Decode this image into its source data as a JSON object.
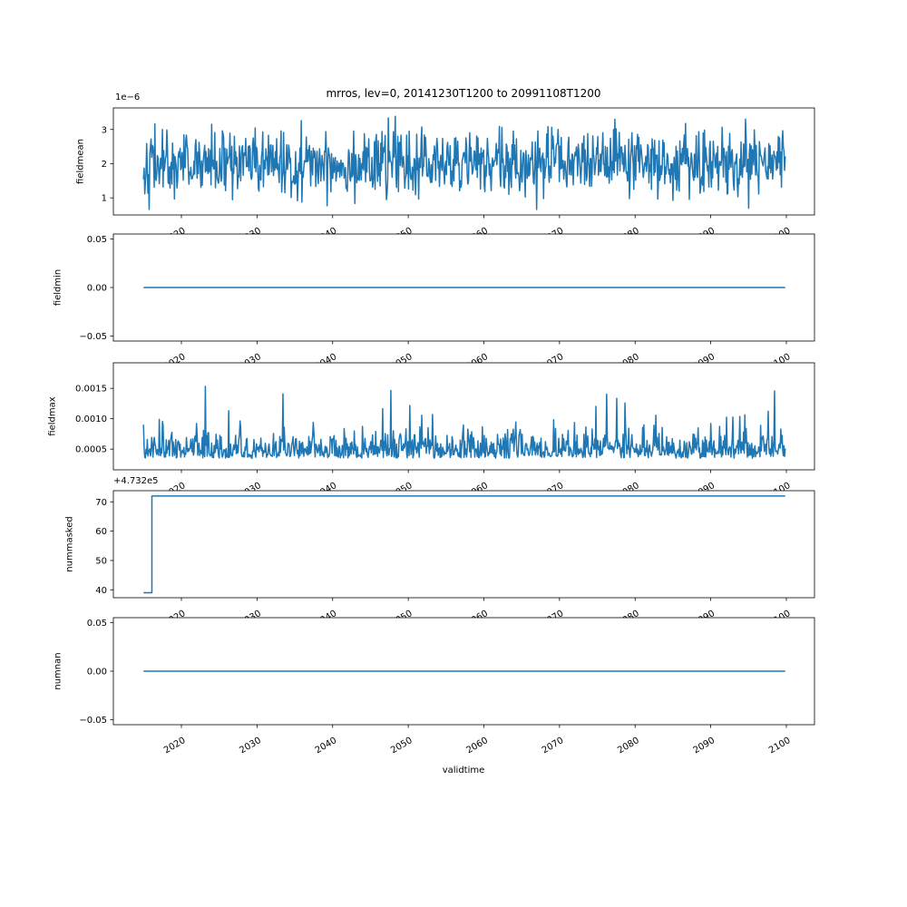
{
  "figure": {
    "title": "mrros, lev=0, 20141230T1200 to 20991108T1200",
    "xlabel": "validtime",
    "background": "#ffffff",
    "line_color": "#1f77b4",
    "axis_color": "#000000",
    "x_tick_years": [
      2020,
      2030,
      2040,
      2050,
      2060,
      2070,
      2080,
      2090,
      2100
    ],
    "x_tick_labels": [
      "2020",
      "2030",
      "2040",
      "2050",
      "2060",
      "2070",
      "2080",
      "2090",
      "2100"
    ],
    "xlim_years": [
      2011.0,
      2103.7
    ],
    "x_tick_rotation_deg": 30
  },
  "chart_data": [
    {
      "type": "line",
      "name": "fieldmean",
      "ylabel": "fieldmean",
      "scale_label": "1e−6",
      "yticks": [
        {
          "v": 1e-06,
          "label": "1"
        },
        {
          "v": 2e-06,
          "label": "2"
        },
        {
          "v": 3e-06,
          "label": "3"
        }
      ],
      "ylim": [
        5e-07,
        3.63e-06
      ],
      "series": {
        "kind": "random-normal",
        "n": 1018,
        "x_start": 2014.99,
        "x_end": 2099.85,
        "mean": 2e-06,
        "sd": 4.8e-07,
        "clip_min": 6.6e-07,
        "clip_max": 3.52e-06,
        "seed": 42
      }
    },
    {
      "type": "line",
      "name": "fieldmin",
      "ylabel": "fieldmin",
      "yticks": [
        {
          "v": 0.05,
          "label": "0.05"
        },
        {
          "v": 0.0,
          "label": "0.00"
        },
        {
          "v": -0.05,
          "label": "−0.05"
        }
      ],
      "ylim": [
        -0.055,
        0.055
      ],
      "series": {
        "kind": "constant",
        "value": 0.0,
        "x_start": 2014.99,
        "x_end": 2099.85
      }
    },
    {
      "type": "line",
      "name": "fieldmax",
      "ylabel": "fieldmax",
      "yticks": [
        {
          "v": 0.0015,
          "label": "0.0015"
        },
        {
          "v": 0.001,
          "label": "0.0010"
        },
        {
          "v": 0.0005,
          "label": "0.0005"
        }
      ],
      "ylim": [
        0.00016,
        0.00192
      ],
      "series": {
        "kind": "random-spiky",
        "n": 1018,
        "x_start": 2014.99,
        "x_end": 2099.85,
        "base": 0.00035,
        "noise_scale": 0.0002,
        "spike_prob": 0.06,
        "spike_scale": 0.00125,
        "clip_min": 0.00027,
        "clip_max": 0.00184,
        "seed": 7
      }
    },
    {
      "type": "line",
      "name": "nummasked",
      "ylabel": "nummasked",
      "offset_label": "+4.732e5",
      "yticks": [
        {
          "v": 473270,
          "label": "70"
        },
        {
          "v": 473260,
          "label": "60"
        },
        {
          "v": 473250,
          "label": "50"
        },
        {
          "v": 473240,
          "label": "40"
        }
      ],
      "ylim": [
        473237.3,
        473273.8
      ],
      "series": {
        "kind": "step",
        "points": [
          [
            2014.99,
            473239
          ],
          [
            2016.1,
            473239
          ],
          [
            2016.1,
            473272
          ],
          [
            2099.85,
            473272
          ]
        ]
      }
    },
    {
      "type": "line",
      "name": "numnan",
      "ylabel": "numnan",
      "yticks": [
        {
          "v": 0.05,
          "label": "0.05"
        },
        {
          "v": 0.0,
          "label": "0.00"
        },
        {
          "v": -0.05,
          "label": "−0.05"
        }
      ],
      "ylim": [
        -0.055,
        0.055
      ],
      "series": {
        "kind": "constant",
        "value": 0.0,
        "x_start": 2014.99,
        "x_end": 2099.85
      }
    }
  ]
}
